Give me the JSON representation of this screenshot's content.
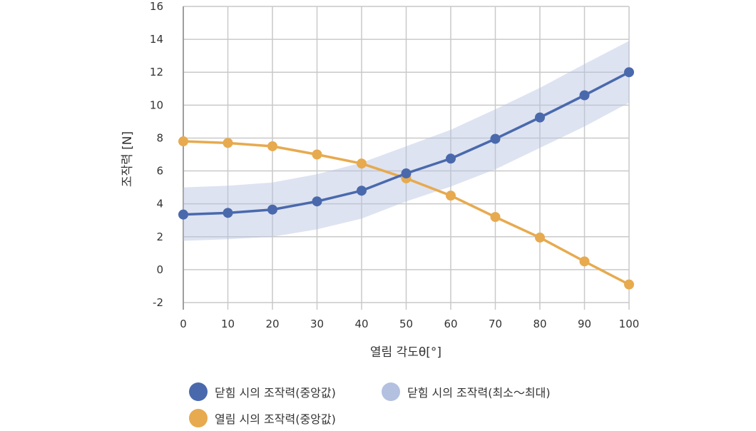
{
  "chart_data": {
    "type": "line",
    "title": "",
    "xlabel": "열림 각도θ[°]",
    "ylabel": "조작력 [N]",
    "xlim": [
      0,
      100
    ],
    "ylim": [
      -2,
      16
    ],
    "x_ticks": [
      "0",
      "10",
      "20",
      "30",
      "40",
      "50",
      "60",
      "70",
      "80",
      "90",
      "100"
    ],
    "y_ticks": [
      "16",
      "14",
      "12",
      "10",
      "8",
      "6",
      "4",
      "2",
      "0",
      "-2"
    ],
    "x": [
      0,
      10,
      20,
      30,
      40,
      50,
      60,
      70,
      80,
      90,
      100
    ],
    "grid": true,
    "series": [
      {
        "name": "닫힘 시의 조작력(중앙값)",
        "kind": "line",
        "color": "#4a69ad",
        "values": [
          3.35,
          3.45,
          3.65,
          4.15,
          4.8,
          5.85,
          6.75,
          7.95,
          9.25,
          10.6,
          12.0
        ]
      },
      {
        "name": "열림 시의 조작력(중앙값)",
        "kind": "line",
        "color": "#e7aa4f",
        "values": [
          7.8,
          7.7,
          7.5,
          7.0,
          6.45,
          5.55,
          4.5,
          3.2,
          1.95,
          0.5,
          -0.9
        ]
      },
      {
        "name": "닫힘 시의 조작력(최소～최대)",
        "kind": "band",
        "color": "#b3c0e0",
        "lower": [
          1.75,
          1.85,
          2.0,
          2.45,
          3.1,
          4.15,
          5.05,
          6.1,
          7.4,
          8.7,
          10.15
        ],
        "upper": [
          5.0,
          5.1,
          5.3,
          5.8,
          6.5,
          7.5,
          8.5,
          9.75,
          11.05,
          12.5,
          13.9
        ]
      }
    ]
  }
}
